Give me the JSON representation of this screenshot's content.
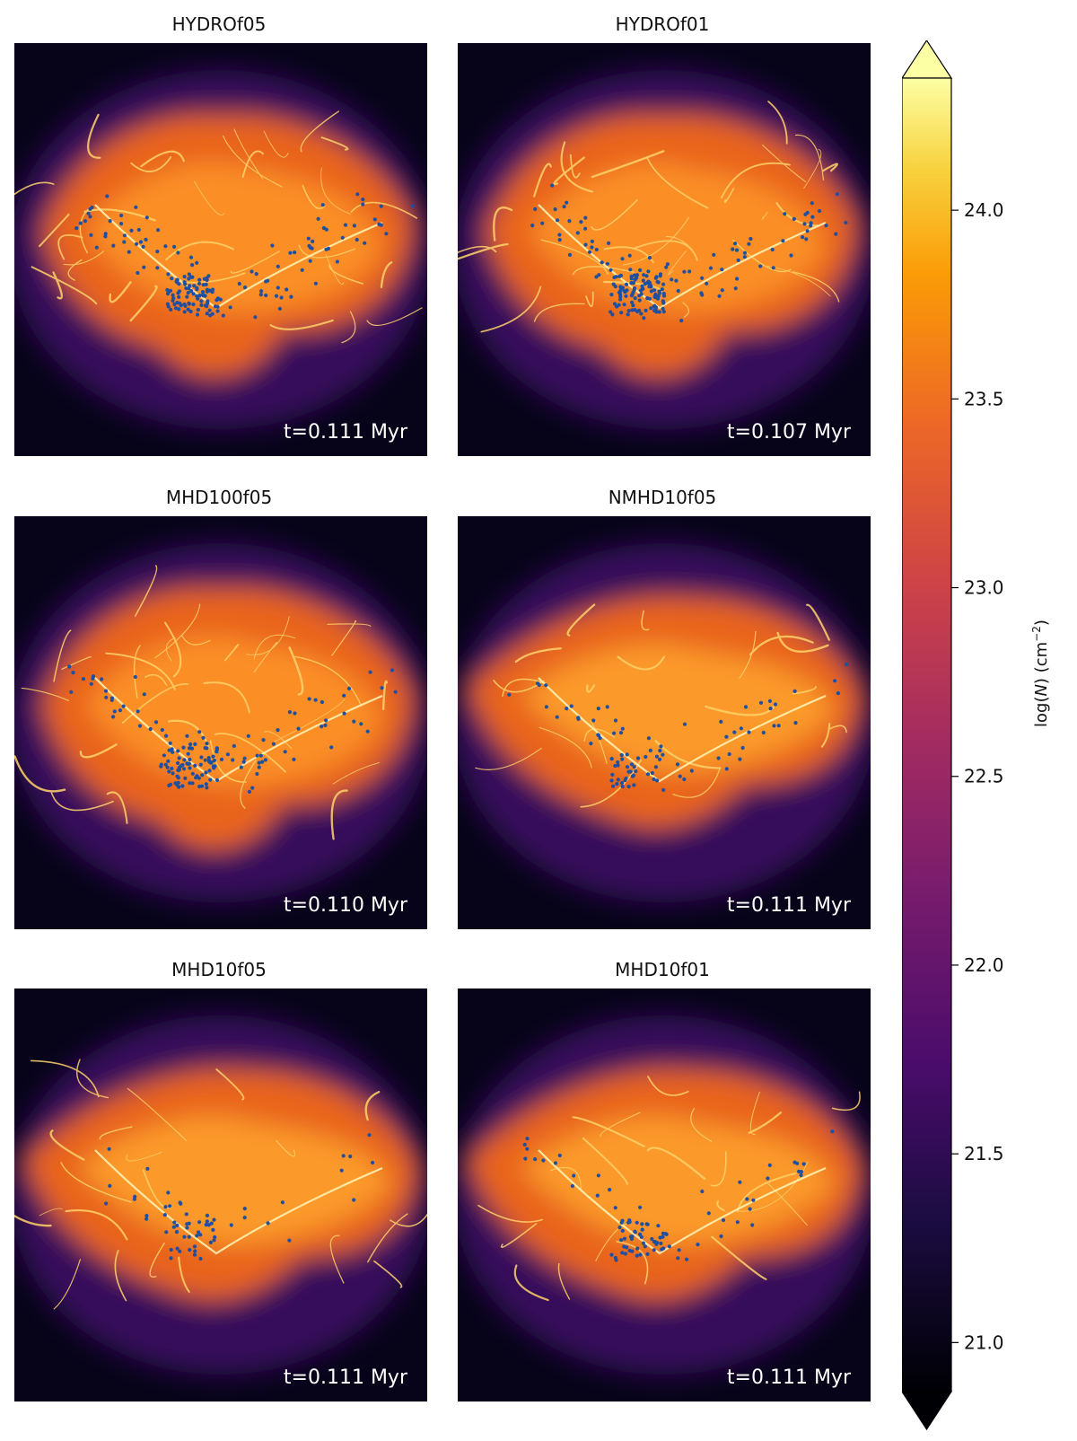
{
  "panels": [
    {
      "title": "HYDROf05",
      "time": "t=0.111 Myr",
      "style": "hydro"
    },
    {
      "title": "HYDROf01",
      "time": "t=0.107 Myr",
      "style": "hydro"
    },
    {
      "title": "MHD100f05",
      "time": "t=0.110 Myr",
      "style": "hydro"
    },
    {
      "title": "NMHD10f05",
      "time": "t=0.111 Myr",
      "style": "mhd"
    },
    {
      "title": "MHD10f05",
      "time": "t=0.111 Myr",
      "style": "mhd"
    },
    {
      "title": "MHD10f01",
      "time": "t=0.111 Myr",
      "style": "mhd"
    }
  ],
  "colorbar": {
    "label_prefix": "log(",
    "label_var": "N",
    "label_mid": ") (cm",
    "label_exp": "−2",
    "label_suffix": ")",
    "min": 20.87,
    "max": 24.35,
    "ticks": [
      "21.0",
      "21.5",
      "22.0",
      "22.5",
      "23.0",
      "23.5",
      "24.0"
    ],
    "colormap": "inferno"
  },
  "colors": {
    "sink_particles": "#1f4fa0",
    "background": "#05030f",
    "diffuse": "#5a1a78",
    "cloud": "#f07a1e",
    "filament": "#ffe8a0"
  }
}
